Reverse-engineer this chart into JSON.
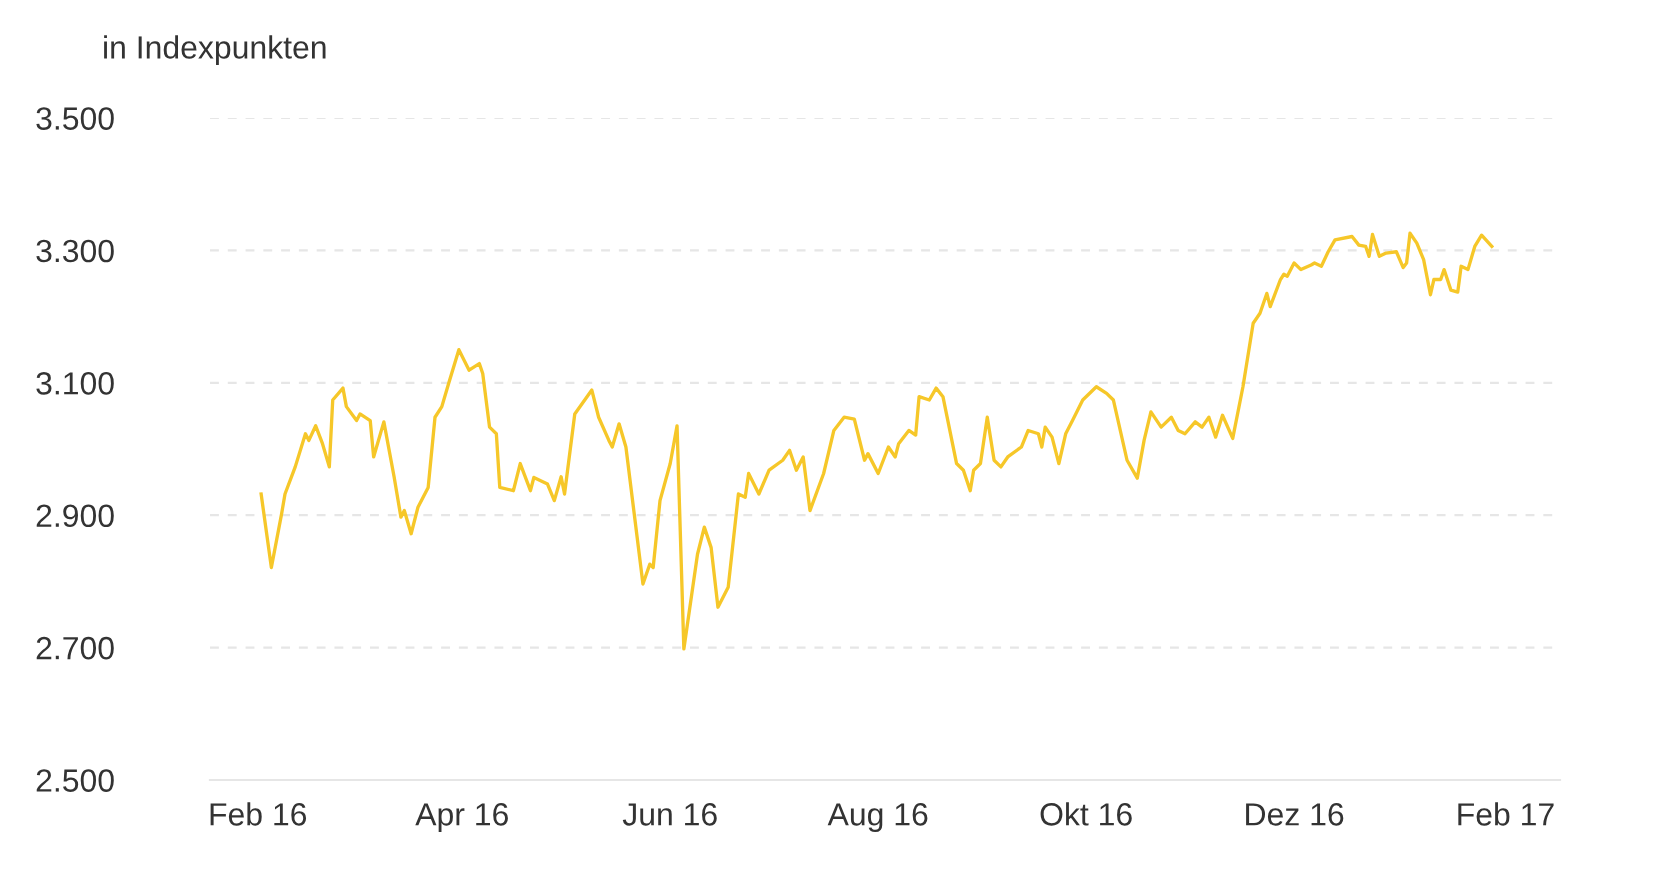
{
  "chart_data": {
    "type": "line",
    "ylabel": "in Indexpunkten",
    "x": [
      "2016-02-02",
      "2016-02-05",
      "2016-02-08",
      "2016-02-09",
      "2016-02-12",
      "2016-02-15",
      "2016-02-16",
      "2016-02-18",
      "2016-02-20",
      "2016-02-22",
      "2016-02-23",
      "2016-02-26",
      "2016-02-27",
      "2016-03-01",
      "2016-03-02",
      "2016-03-05",
      "2016-03-06",
      "2016-03-09",
      "2016-03-12",
      "2016-03-14",
      "2016-03-15",
      "2016-03-17",
      "2016-03-19",
      "2016-03-22",
      "2016-03-24",
      "2016-03-26",
      "2016-03-28",
      "2016-03-31",
      "2016-04-03",
      "2016-04-06",
      "2016-04-07",
      "2016-04-09",
      "2016-04-11",
      "2016-04-12",
      "2016-04-16",
      "2016-04-18",
      "2016-04-21",
      "2016-04-22",
      "2016-04-26",
      "2016-04-28",
      "2016-04-30",
      "2016-05-01",
      "2016-05-04",
      "2016-05-09",
      "2016-05-11",
      "2016-05-14",
      "2016-05-15",
      "2016-05-17",
      "2016-05-19",
      "2016-05-24",
      "2016-05-26",
      "2016-05-27",
      "2016-05-29",
      "2016-06-01",
      "2016-06-03",
      "2016-06-05",
      "2016-06-09",
      "2016-06-11",
      "2016-06-13",
      "2016-06-15",
      "2016-06-18",
      "2016-06-21",
      "2016-06-23",
      "2016-06-24",
      "2016-06-27",
      "2016-06-30",
      "2016-07-04",
      "2016-07-06",
      "2016-07-08",
      "2016-07-10",
      "2016-07-12",
      "2016-07-16",
      "2016-07-19",
      "2016-07-22",
      "2016-07-25",
      "2016-07-28",
      "2016-07-29",
      "2016-08-01",
      "2016-08-04",
      "2016-08-06",
      "2016-08-07",
      "2016-08-10",
      "2016-08-12",
      "2016-08-13",
      "2016-08-16",
      "2016-08-18",
      "2016-08-20",
      "2016-08-24",
      "2016-08-26",
      "2016-08-28",
      "2016-08-29",
      "2016-08-31",
      "2016-09-02",
      "2016-09-04",
      "2016-09-06",
      "2016-09-08",
      "2016-09-12",
      "2016-09-14",
      "2016-09-17",
      "2016-09-18",
      "2016-09-19",
      "2016-09-21",
      "2016-09-23",
      "2016-09-25",
      "2016-09-27",
      "2016-09-30",
      "2016-10-04",
      "2016-10-07",
      "2016-10-09",
      "2016-10-13",
      "2016-10-16",
      "2016-10-18",
      "2016-10-20",
      "2016-10-23",
      "2016-10-26",
      "2016-10-28",
      "2016-10-30",
      "2016-11-02",
      "2016-11-04",
      "2016-11-06",
      "2016-11-08",
      "2016-11-10",
      "2016-11-13",
      "2016-11-16",
      "2016-11-19",
      "2016-11-21",
      "2016-11-23",
      "2016-11-24",
      "2016-11-27",
      "2016-11-28",
      "2016-11-29",
      "2016-12-01",
      "2016-12-03",
      "2016-12-06",
      "2016-12-07",
      "2016-12-09",
      "2016-12-11",
      "2016-12-13",
      "2016-12-18",
      "2016-12-20",
      "2016-12-22",
      "2016-12-23",
      "2016-12-24",
      "2016-12-26",
      "2016-12-28",
      "2016-12-31",
      "2017-01-02",
      "2017-01-03",
      "2017-01-04",
      "2017-01-06",
      "2017-01-08",
      "2017-01-10",
      "2017-01-11",
      "2017-01-13",
      "2017-01-14",
      "2017-01-16",
      "2017-01-18",
      "2017-01-19",
      "2017-01-21",
      "2017-01-23",
      "2017-01-25",
      "2017-01-28"
    ],
    "series": [
      {
        "color": "#f6c729",
        "values": [
          2932,
          2821,
          2902,
          2932,
          2973,
          3023,
          3013,
          3035,
          3008,
          2973,
          3074,
          3092,
          3064,
          3043,
          3053,
          3043,
          2988,
          3041,
          2958,
          2897,
          2907,
          2872,
          2912,
          2942,
          3048,
          3064,
          3099,
          3150,
          3119,
          3129,
          3114,
          3033,
          3023,
          2942,
          2937,
          2978,
          2937,
          2957,
          2947,
          2922,
          2958,
          2932,
          3053,
          3089,
          3048,
          3013,
          3003,
          3038,
          3003,
          2796,
          2826,
          2821,
          2922,
          2978,
          3035,
          2698,
          2841,
          2882,
          2851,
          2761,
          2791,
          2932,
          2927,
          2963,
          2932,
          2968,
          2983,
          2998,
          2968,
          2988,
          2907,
          2963,
          3028,
          3048,
          3045,
          2983,
          2993,
          2963,
          3003,
          2988,
          3008,
          3028,
          3021,
          3079,
          3074,
          3092,
          3079,
          2978,
          2968,
          2937,
          2968,
          2978,
          3048,
          2983,
          2973,
          2988,
          3003,
          3028,
          3023,
          3003,
          3033,
          3018,
          2978,
          3023,
          3043,
          3074,
          3094,
          3084,
          3074,
          2983,
          2956,
          3013,
          3056,
          3033,
          3048,
          3028,
          3023,
          3041,
          3033,
          3048,
          3018,
          3051,
          3016,
          3094,
          3190,
          3205,
          3235,
          3215,
          3256,
          3264,
          3261,
          3281,
          3271,
          3278,
          3281,
          3276,
          3298,
          3316,
          3321,
          3308,
          3306,
          3291,
          3324,
          3291,
          3296,
          3298,
          3274,
          3281,
          3326,
          3311,
          3286,
          3233,
          3256,
          3256,
          3271,
          3240,
          3237,
          3276,
          3271,
          3306,
          3323,
          3306
        ]
      }
    ],
    "xlim": [
      "2016-01-18",
      "2017-02-17"
    ],
    "xticks": [
      {
        "value": "2016-02-01",
        "label": "Feb 16"
      },
      {
        "value": "2016-04-01",
        "label": "Apr 16"
      },
      {
        "value": "2016-06-01",
        "label": "Jun 16"
      },
      {
        "value": "2016-08-01",
        "label": "Aug 16"
      },
      {
        "value": "2016-10-01",
        "label": "Okt 16"
      },
      {
        "value": "2016-12-01",
        "label": "Dez 16"
      },
      {
        "value": "2017-02-01",
        "label": "Feb 17"
      }
    ],
    "ylim": [
      2500,
      3500
    ],
    "yticks": [
      {
        "value": 2500,
        "label": "2.500"
      },
      {
        "value": 2700,
        "label": "2.700"
      },
      {
        "value": 2900,
        "label": "2.900"
      },
      {
        "value": 3100,
        "label": "3.100"
      },
      {
        "value": 3300,
        "label": "3.300"
      },
      {
        "value": 3500,
        "label": "3.500"
      }
    ],
    "grid": "y",
    "line_style": "solid",
    "marker": "none"
  }
}
